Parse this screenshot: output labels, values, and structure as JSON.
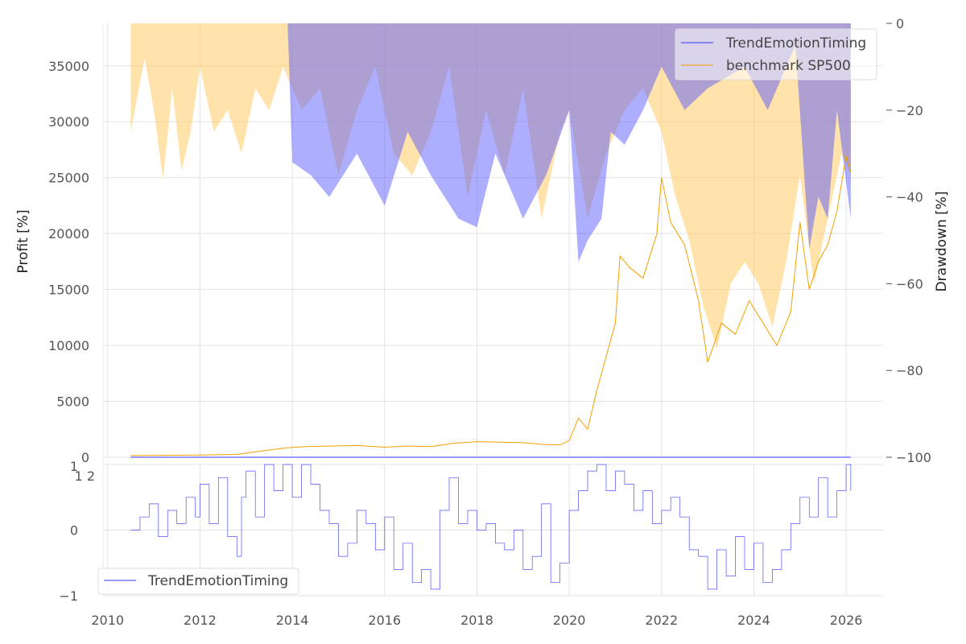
{
  "colors": {
    "strategy": "#3333ff",
    "benchmark": "#f2a000",
    "strategy_drawdown_fill": "#aaaaff",
    "benchmark_drawdown_fill": "#ffe0a8",
    "overlap_fill": "#c4a8aa",
    "grid": "#e3e3e3"
  },
  "chart_data": [
    {
      "type": "line",
      "panel": "profit-and-drawdown",
      "title": "",
      "ylabel": "Profit [%]",
      "ylabel_right": "Drawdown [%]",
      "ylim": [
        0,
        38800
      ],
      "ylim_right": [
        -100,
        0
      ],
      "xlim": [
        2009.9,
        2026.8
      ],
      "yticks": [
        0,
        5000,
        10000,
        15000,
        20000,
        25000,
        30000,
        35000
      ],
      "ytick_labels": [
        "0",
        "5000",
        "10000",
        "15000",
        "20000",
        "25000",
        "30000",
        "35000"
      ],
      "yticks_right": [
        0,
        -20,
        -40,
        -60,
        -80,
        -100
      ],
      "ytick_labels_right": [
        "0",
        "−20",
        "−40",
        "−60",
        "−80",
        "−100"
      ],
      "legend": [
        "TrendEmotionTiming",
        "benchmark SP500"
      ],
      "legend_position": "top-right",
      "series": [
        {
          "name": "TrendEmotionTiming",
          "axis": "left",
          "x": [
            2010.5,
            2012.0,
            2014.0,
            2016.0,
            2018.0,
            2020.0,
            2022.0,
            2024.0,
            2026.1
          ],
          "values": [
            0,
            0,
            0,
            0,
            0,
            0,
            0,
            0,
            0
          ]
        },
        {
          "name": "benchmark SP500",
          "axis": "left",
          "x": [
            2010.5,
            2011.0,
            2012.0,
            2012.8,
            2013.4,
            2013.9,
            2014.3,
            2014.8,
            2015.4,
            2016.0,
            2016.5,
            2017.0,
            2017.5,
            2018.0,
            2018.5,
            2019.0,
            2019.4,
            2019.8,
            2020.0,
            2020.2,
            2020.4,
            2020.6,
            2020.8,
            2021.0,
            2021.1,
            2021.3,
            2021.6,
            2021.9,
            2022.0,
            2022.2,
            2022.5,
            2022.8,
            2023.0,
            2023.3,
            2023.6,
            2023.9,
            2024.2,
            2024.5,
            2024.8,
            2025.0,
            2025.2,
            2025.4,
            2025.6,
            2025.8,
            2026.0,
            2026.1
          ],
          "values": [
            150,
            160,
            200,
            250,
            600,
            850,
            950,
            1000,
            1050,
            900,
            1000,
            950,
            1250,
            1400,
            1350,
            1300,
            1150,
            1100,
            1500,
            3500,
            2500,
            6000,
            9000,
            12000,
            18000,
            17000,
            16000,
            20000,
            25000,
            21000,
            19000,
            14000,
            8500,
            12000,
            11000,
            14000,
            12000,
            10000,
            13000,
            21000,
            15000,
            17500,
            19000,
            22000,
            27000,
            25500
          ]
        },
        {
          "name": "TrendEmotionTiming drawdown",
          "axis": "right",
          "x": [
            2010.5,
            2013.9,
            2014.0,
            2014.4,
            2014.8,
            2015.4,
            2016.0,
            2016.5,
            2017.0,
            2017.6,
            2018.0,
            2018.4,
            2019.0,
            2019.5,
            2020.0,
            2020.2,
            2020.4,
            2020.7,
            2020.9,
            2021.2,
            2021.6,
            2022.0,
            2022.5,
            2023.0,
            2023.8,
            2024.3,
            2024.9,
            2025.2,
            2025.4,
            2025.6,
            2025.8,
            2026.1
          ],
          "values": [
            0,
            0,
            -32,
            -35,
            -40,
            -30,
            -42,
            -25,
            -35,
            -45,
            -47,
            -30,
            -45,
            -35,
            -20,
            -55,
            -50,
            -45,
            -25,
            -28,
            -20,
            -10,
            -20,
            -15,
            -10,
            -20,
            -5,
            -52,
            -40,
            -45,
            -20,
            -45
          ]
        },
        {
          "name": "benchmark SP500 drawdown",
          "axis": "right",
          "x": [
            2010.5,
            2010.8,
            2011.0,
            2011.2,
            2011.4,
            2011.6,
            2011.8,
            2012.0,
            2012.3,
            2012.6,
            2012.9,
            2013.2,
            2013.5,
            2013.8,
            2014.2,
            2014.6,
            2015.0,
            2015.4,
            2015.8,
            2016.2,
            2016.6,
            2017.0,
            2017.4,
            2017.8,
            2018.2,
            2018.6,
            2019.0,
            2019.4,
            2019.8,
            2020.0,
            2020.4,
            2020.8,
            2021.2,
            2021.6,
            2022.0,
            2022.3,
            2022.6,
            2022.9,
            2023.2,
            2023.5,
            2023.8,
            2024.1,
            2024.4,
            2024.7,
            2025.0,
            2025.3,
            2025.6,
            2025.9,
            2026.1
          ],
          "values": [
            -25,
            -8,
            -20,
            -36,
            -15,
            -34,
            -25,
            -10,
            -25,
            -20,
            -30,
            -15,
            -20,
            -10,
            -20,
            -15,
            -35,
            -20,
            -10,
            -30,
            -35,
            -25,
            -10,
            -40,
            -20,
            -35,
            -15,
            -45,
            -25,
            -20,
            -45,
            -30,
            -20,
            -15,
            -25,
            -40,
            -50,
            -65,
            -75,
            -60,
            -55,
            -60,
            -70,
            -55,
            -35,
            -60,
            -45,
            -30,
            -35
          ]
        }
      ]
    },
    {
      "type": "line",
      "panel": "signal",
      "title": "",
      "ylabel": "",
      "ylim": [
        -1,
        1
      ],
      "yticks": [
        -1,
        0,
        1
      ],
      "ytick_labels": [
        "−1",
        "0",
        "1"
      ],
      "top_tick_overlap_text": "1 2",
      "legend": [
        "TrendEmotionTiming"
      ],
      "legend_position": "bottom-left",
      "xlabel": "",
      "xticks": [
        2010,
        2012,
        2014,
        2016,
        2018,
        2020,
        2022,
        2024,
        2026
      ],
      "xtick_labels": [
        "2010",
        "2012",
        "2014",
        "2016",
        "2018",
        "2020",
        "2022",
        "2024",
        "2026"
      ],
      "series": [
        {
          "name": "TrendEmotionTiming",
          "x": [
            2010.5,
            2010.7,
            2010.9,
            2011.1,
            2011.3,
            2011.5,
            2011.7,
            2011.9,
            2012.0,
            2012.2,
            2012.4,
            2012.6,
            2012.8,
            2012.9,
            2013.0,
            2013.2,
            2013.4,
            2013.6,
            2013.8,
            2014.0,
            2014.2,
            2014.4,
            2014.6,
            2014.8,
            2015.0,
            2015.2,
            2015.4,
            2015.6,
            2015.8,
            2016.0,
            2016.2,
            2016.4,
            2016.6,
            2016.8,
            2017.0,
            2017.2,
            2017.4,
            2017.6,
            2017.8,
            2018.0,
            2018.2,
            2018.4,
            2018.6,
            2018.8,
            2019.0,
            2019.2,
            2019.4,
            2019.6,
            2019.8,
            2020.0,
            2020.2,
            2020.4,
            2020.6,
            2020.8,
            2021.0,
            2021.2,
            2021.4,
            2021.6,
            2021.8,
            2022.0,
            2022.2,
            2022.4,
            2022.6,
            2022.8,
            2023.0,
            2023.2,
            2023.4,
            2023.6,
            2023.8,
            2024.0,
            2024.2,
            2024.4,
            2024.6,
            2024.8,
            2025.0,
            2025.2,
            2025.4,
            2025.6,
            2025.8,
            2026.0,
            2026.1
          ],
          "values": [
            0,
            0.2,
            0.4,
            -0.1,
            0.3,
            0.1,
            0.5,
            0.2,
            0.7,
            0.1,
            0.8,
            -0.1,
            -0.4,
            0.5,
            0.9,
            0.2,
            1.0,
            0.6,
            1.0,
            0.5,
            1.0,
            0.7,
            0.3,
            0.1,
            -0.4,
            -0.2,
            0.3,
            0.1,
            -0.3,
            0.2,
            -0.6,
            -0.2,
            -0.8,
            -0.6,
            -0.9,
            0.3,
            0.8,
            0.1,
            0.3,
            0.0,
            0.1,
            -0.2,
            -0.3,
            0.0,
            -0.6,
            -0.4,
            0.4,
            -0.8,
            -0.5,
            0.3,
            0.6,
            0.9,
            1.0,
            0.6,
            0.9,
            0.7,
            0.3,
            0.6,
            0.1,
            0.3,
            0.5,
            0.2,
            -0.3,
            -0.4,
            -0.9,
            -0.3,
            -0.7,
            -0.1,
            -0.6,
            -0.2,
            -0.8,
            -0.6,
            -0.3,
            0.1,
            0.5,
            0.2,
            0.8,
            0.2,
            0.6,
            1.0,
            0.6
          ]
        }
      ]
    }
  ]
}
